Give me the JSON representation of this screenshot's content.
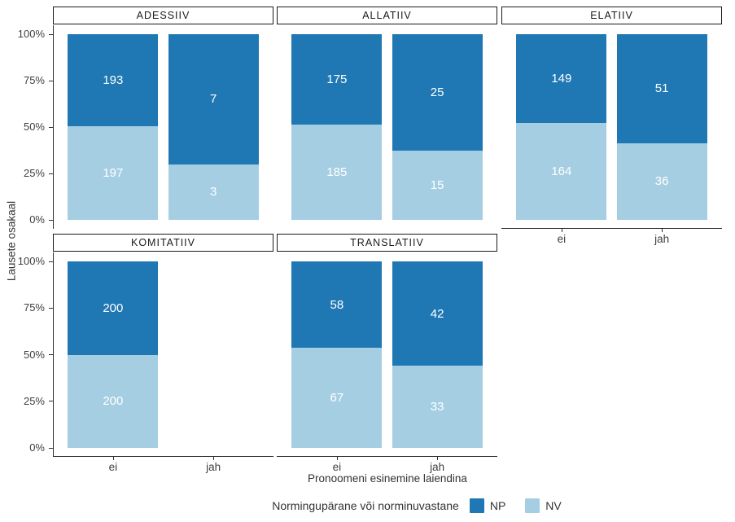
{
  "chart_data": {
    "type": "bar",
    "subtype": "stacked-100-percent",
    "title": "",
    "xlabel": "Pronoomeni esinemine laiendina",
    "ylabel": "Lausete osakaal",
    "ylim": [
      0,
      100
    ],
    "grid": false,
    "y_ticks": [
      {
        "value": 0,
        "label": "0%"
      },
      {
        "value": 25,
        "label": "25%"
      },
      {
        "value": 50,
        "label": "50%"
      },
      {
        "value": 75,
        "label": "75%"
      },
      {
        "value": 100,
        "label": "100%"
      }
    ],
    "x_categories": [
      "ei",
      "jah"
    ],
    "stack_order_bottom_to_top": [
      "NV",
      "NP"
    ],
    "legend": {
      "title": "Normingupärane või norminuvastane",
      "position": "bottom",
      "items": [
        {
          "label": "NP",
          "color": "#1F78B4"
        },
        {
          "label": "NV",
          "color": "#A6CEE3"
        }
      ]
    },
    "facets": [
      {
        "label": "ADESSIIV",
        "row": 0,
        "col": 0,
        "y_axis": true,
        "x_axis": false,
        "bars": [
          {
            "x": "ei",
            "NP": 193,
            "NV": 197
          },
          {
            "x": "jah",
            "NP": 7,
            "NV": 3
          }
        ]
      },
      {
        "label": "ALLATIIV",
        "row": 0,
        "col": 1,
        "y_axis": false,
        "x_axis": false,
        "bars": [
          {
            "x": "ei",
            "NP": 175,
            "NV": 185
          },
          {
            "x": "jah",
            "NP": 25,
            "NV": 15
          }
        ]
      },
      {
        "label": "ELATIIV",
        "row": 0,
        "col": 2,
        "y_axis": false,
        "x_axis": true,
        "bars": [
          {
            "x": "ei",
            "NP": 149,
            "NV": 164
          },
          {
            "x": "jah",
            "NP": 51,
            "NV": 36
          }
        ]
      },
      {
        "label": "KOMITATIIV",
        "row": 1,
        "col": 0,
        "y_axis": true,
        "x_axis": true,
        "bars": [
          {
            "x": "ei",
            "NP": 200,
            "NV": 200
          }
        ]
      },
      {
        "label": "TRANSLATIIV",
        "row": 1,
        "col": 1,
        "y_axis": false,
        "x_axis": true,
        "bars": [
          {
            "x": "ei",
            "NP": 58,
            "NV": 67
          },
          {
            "x": "jah",
            "NP": 42,
            "NV": 33
          }
        ]
      }
    ]
  },
  "colors": {
    "np": "#1F78B4",
    "nv": "#A6CEE3",
    "axis_line": "#2e2e2e",
    "axis_text": "#404040",
    "strip_border": "#1a1a1a",
    "background": "#ffffff"
  }
}
